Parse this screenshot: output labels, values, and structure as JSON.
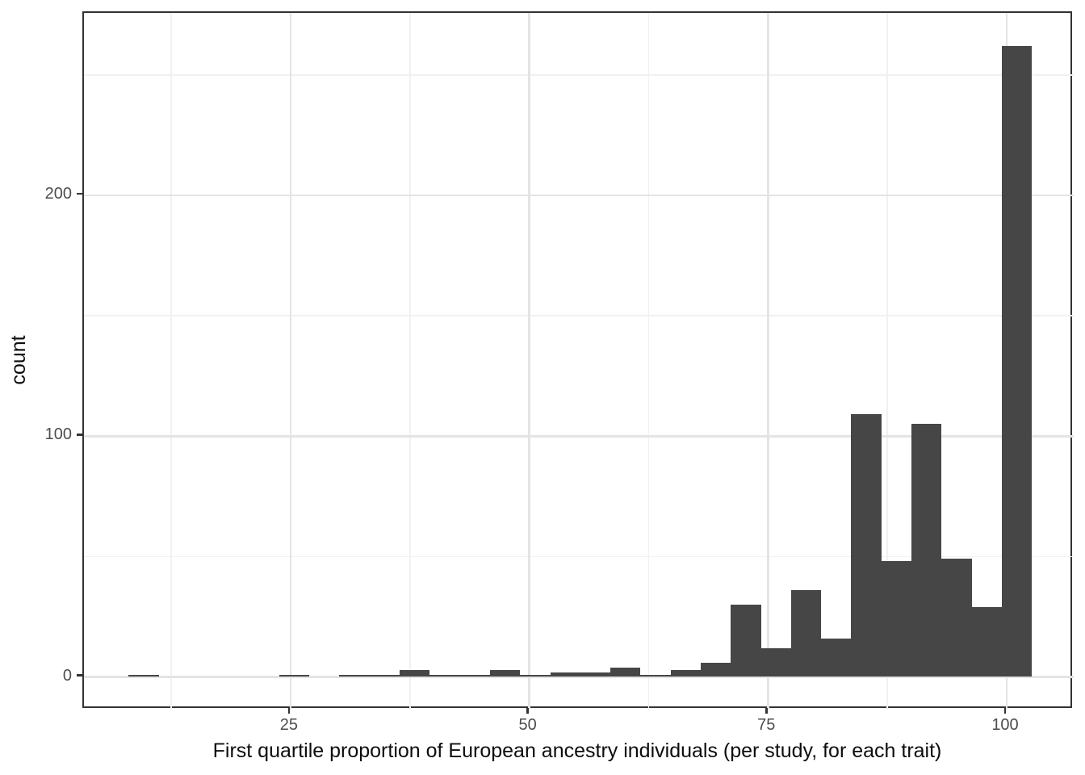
{
  "chart_data": {
    "type": "bar",
    "subtype": "histogram",
    "title": "",
    "xlabel": "First quartile proportion of European ancestry individuals (per study, for each trait)",
    "ylabel": "count",
    "x_ticks": [
      25,
      50,
      75,
      100
    ],
    "y_ticks": [
      0,
      100,
      200
    ],
    "x_minor_gridlines": [
      12.5,
      37.5,
      62.5,
      87.5
    ],
    "y_minor_gridlines": [
      50,
      150,
      250
    ],
    "xlim": [
      3.37,
      107.06
    ],
    "ylim": [
      -13.6,
      275.8
    ],
    "grid": true,
    "legend": false,
    "bin_start": 8.05,
    "bin_width": 3.153,
    "bin_counts": [
      1,
      0,
      0,
      0,
      0,
      1,
      0,
      1,
      1,
      3,
      1,
      1,
      3,
      1,
      2,
      2,
      4,
      1,
      3,
      6,
      30,
      12,
      36,
      16,
      109,
      48,
      105,
      49,
      29,
      262
    ]
  },
  "colors": {
    "bar_fill": "#464646",
    "axis_text": "#4d4d4d",
    "axis_title": "#0d0d0d",
    "grid_major": "#e4e4e4",
    "grid_minor": "#f1f1f1",
    "panel_border": "#333333",
    "background": "#ffffff"
  }
}
